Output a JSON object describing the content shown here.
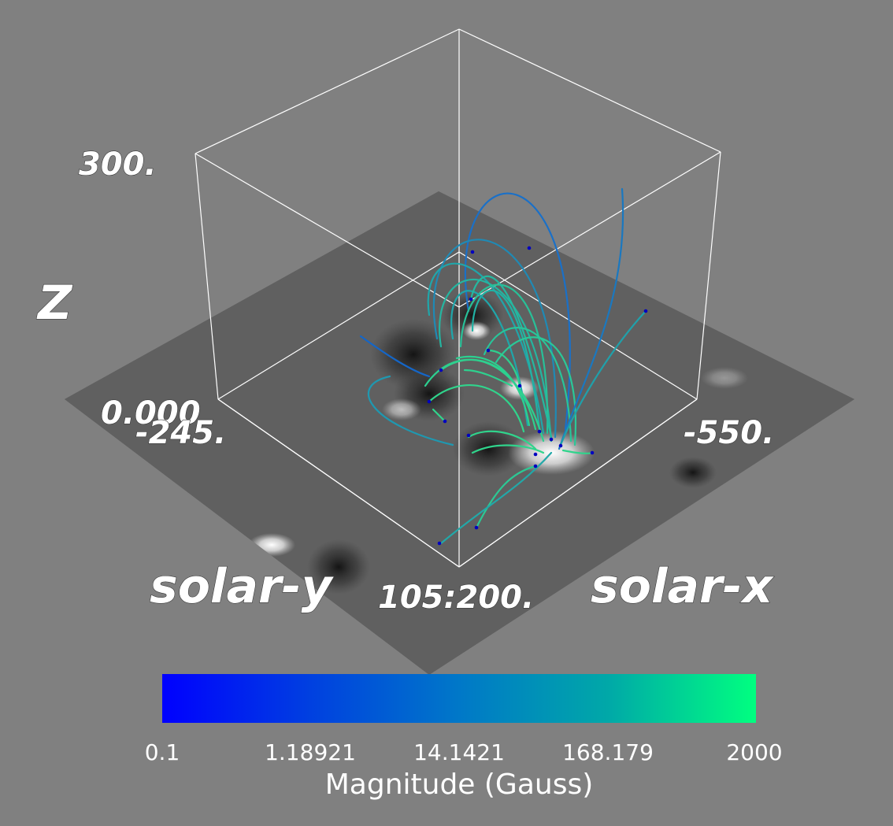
{
  "axes": {
    "x_label": "solar-x",
    "y_label": "solar-y",
    "z_label": "Z",
    "ticks": {
      "z_max": "300.",
      "z_min": "0.000",
      "y_min": "-245.",
      "x_min": "-550.",
      "bottom_corner": "105:200."
    }
  },
  "colorbar": {
    "title": "Magnitude (Gauss)",
    "tick_labels": [
      "0.1",
      "1.18921",
      "14.1421",
      "168.179",
      "2000"
    ],
    "colors": [
      "#0000ff",
      "#0040e0",
      "#0078c8",
      "#00a8a8",
      "#00ff80"
    ],
    "scale": "log"
  },
  "background_color": "#808080",
  "box_color": "#ffffff"
}
